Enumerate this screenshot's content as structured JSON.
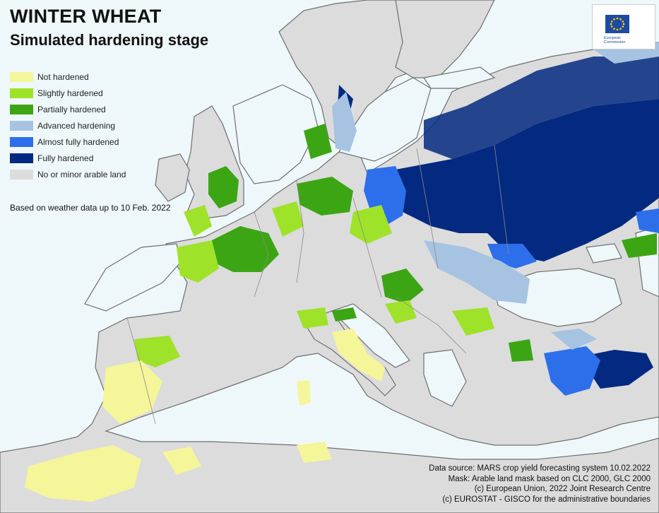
{
  "title": "WINTER WHEAT",
  "subtitle": "Simulated hardening stage",
  "legend": [
    {
      "label": "Not hardened",
      "color": "#f5f59a"
    },
    {
      "label": "Slightly hardened",
      "color": "#9fe22a"
    },
    {
      "label": "Partially hardened",
      "color": "#3ca514"
    },
    {
      "label": "Advanced hardening",
      "color": "#a6c3e2"
    },
    {
      "label": "Almost fully hardened",
      "color": "#2d6fea"
    },
    {
      "label": "Fully hardened",
      "color": "#032a80"
    },
    {
      "label": "No or minor arable land",
      "color": "#dcdcdc"
    }
  ],
  "note": "Based on weather data up to 10 Feb. 2022",
  "credits": [
    "Data source: MARS crop yield forecasting system 10.02.2022",
    "Mask: Arable land mask based on CLC 2000, GLC 2000",
    "(c) European Union, 2022 Joint Research Centre",
    "(c) EUROSTAT - GISCO for the administrative boundaries"
  ],
  "logo": {
    "line1": "European",
    "line2": "Commission"
  },
  "colors": {
    "sea": "#eef8fb",
    "land": "#dcdcdc",
    "border": "#6e6e6e"
  }
}
